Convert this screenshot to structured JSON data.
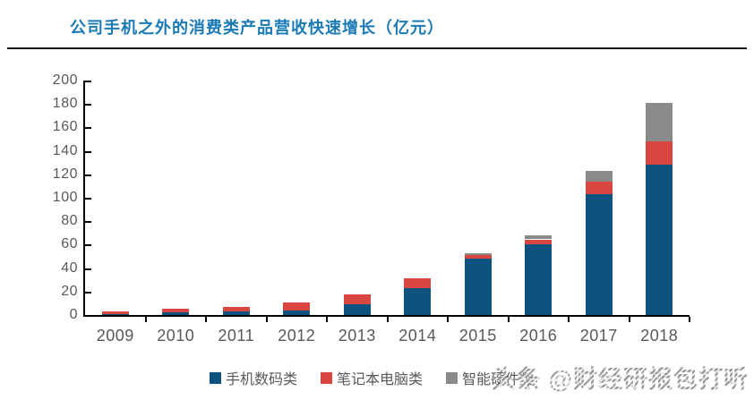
{
  "header": {
    "title": "公司手机之外的消费类产品营收快速增长（亿元）"
  },
  "watermark": {
    "brand": "头条",
    "handle": "@财经研报包打听"
  },
  "colors": {
    "title_blue": "#1A7AB5",
    "divider": "#151515",
    "axis_line": "#000000",
    "axis_label_gray": "#595959",
    "series_phone_blue": "#0E537F",
    "series_laptop_red": "#D94642",
    "series_hardware_gray": "#8A8A8A"
  },
  "chart_data": {
    "type": "bar",
    "stacked": true,
    "title": "公司手机之外的消费类产品营收快速增长（亿元）",
    "unit": "亿元",
    "categories": [
      "2009",
      "2010",
      "2011",
      "2012",
      "2013",
      "2014",
      "2015",
      "2016",
      "2017",
      "2018"
    ],
    "series": [
      {
        "name": "手机数码类",
        "color": "#0E537F",
        "values": [
          1,
          2.5,
          3,
          3.5,
          9,
          23,
          48,
          60,
          103,
          128
        ]
      },
      {
        "name": "笔记本电脑类",
        "color": "#D94642",
        "values": [
          2,
          3,
          4,
          7,
          8.5,
          8,
          3,
          4.5,
          11,
          20
        ]
      },
      {
        "name": "智能硬件类",
        "color": "#8A8A8A",
        "values": [
          0,
          0,
          0,
          0,
          0,
          0,
          2,
          3.5,
          9,
          33
        ]
      }
    ],
    "totals": [
      3,
      5.5,
      7,
      10.5,
      17.5,
      31,
      53,
      68,
      123,
      181
    ],
    "xlabel": "",
    "ylabel": "",
    "ylim": [
      0,
      200
    ],
    "ytick_step": 20,
    "grid": false,
    "legend_position": "bottom"
  }
}
